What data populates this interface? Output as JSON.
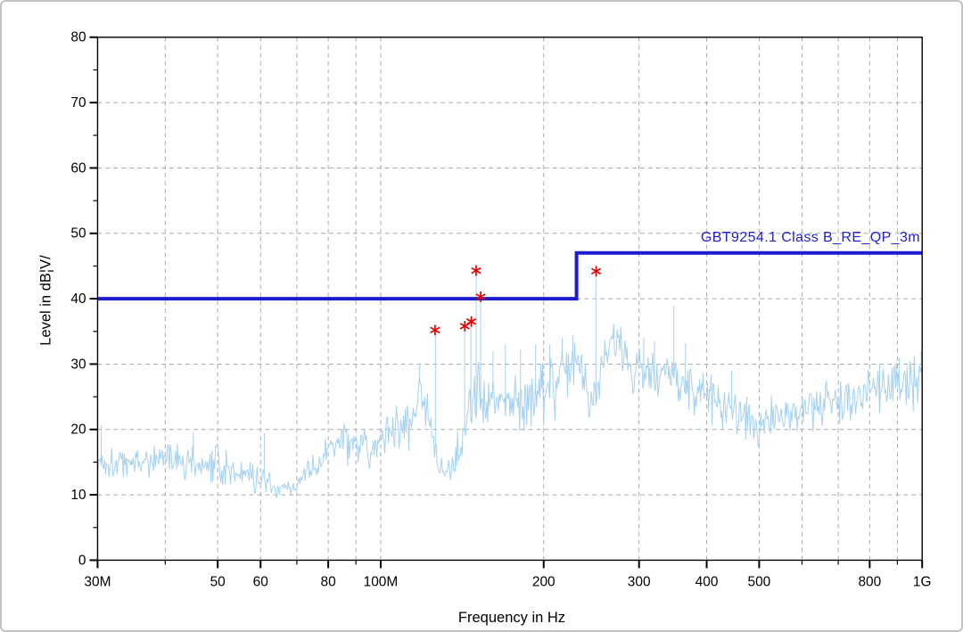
{
  "chart_data": {
    "type": "line",
    "title": "",
    "xlabel": "Frequency in Hz",
    "ylabel": "Level in dB¦V/",
    "x_scale": "log",
    "xlim_mhz": [
      30,
      1000
    ],
    "ylim": [
      0,
      80
    ],
    "grid": true,
    "y_major_ticks": [
      0,
      10,
      20,
      30,
      40,
      50,
      60,
      70,
      80
    ],
    "y_minor_ticks": [
      5,
      15,
      25,
      35,
      45,
      55,
      65,
      75
    ],
    "x_major_ticks": [
      {
        "mhz": 30,
        "label": "30M"
      },
      {
        "mhz": 50,
        "label": "50"
      },
      {
        "mhz": 60,
        "label": "60"
      },
      {
        "mhz": 80,
        "label": "80"
      },
      {
        "mhz": 100,
        "label": "100M"
      },
      {
        "mhz": 200,
        "label": "200"
      },
      {
        "mhz": 300,
        "label": "300"
      },
      {
        "mhz": 400,
        "label": "400"
      },
      {
        "mhz": 500,
        "label": "500"
      },
      {
        "mhz": 800,
        "label": "800"
      },
      {
        "mhz": 1000,
        "label": "1G"
      }
    ],
    "x_minor_ticks_mhz": [
      40,
      70,
      90,
      600,
      700,
      900
    ],
    "x_grid_mhz": [
      40,
      50,
      60,
      70,
      80,
      90,
      100,
      200,
      300,
      400,
      500,
      600,
      700,
      800,
      900
    ],
    "limit_line": {
      "label": "GBT9254.1 Class B_RE_QP_3m",
      "color": "#1c1ccd",
      "points_mhz_db": [
        [
          30,
          40
        ],
        [
          230,
          40
        ],
        [
          230,
          47
        ],
        [
          1000,
          47
        ]
      ]
    },
    "series": [
      {
        "name": "measured-spectrum",
        "color": "#a6d2f2",
        "envelope_mhz_base_spread": [
          [
            30,
            15,
            2.5
          ],
          [
            34,
            15,
            2
          ],
          [
            38,
            15.3,
            2.2
          ],
          [
            42,
            15.4,
            2.4
          ],
          [
            46,
            15,
            2.3
          ],
          [
            50,
            15,
            2.2
          ],
          [
            54,
            13.6,
            1.7
          ],
          [
            58,
            13.2,
            1.7
          ],
          [
            62,
            11.8,
            1.4
          ],
          [
            66,
            10.8,
            1
          ],
          [
            70,
            11.5,
            1.3
          ],
          [
            74,
            13.5,
            1.7
          ],
          [
            78,
            15.5,
            2.1
          ],
          [
            82,
            17.8,
            2.5
          ],
          [
            87,
            18.8,
            2.6
          ],
          [
            92,
            18.2,
            2.6
          ],
          [
            97,
            18.2,
            2.5
          ],
          [
            102,
            19,
            2.7
          ],
          [
            108,
            20.5,
            3
          ],
          [
            114,
            22.5,
            3.3
          ],
          [
            119,
            25,
            3.6
          ],
          [
            122,
            23.5,
            3.2
          ],
          [
            125,
            17,
            2.4
          ],
          [
            128,
            14,
            1.8
          ],
          [
            132,
            13.3,
            1.7
          ],
          [
            136,
            14.8,
            2
          ],
          [
            140,
            17.8,
            2.7
          ],
          [
            145,
            22,
            3.4
          ],
          [
            150,
            26.5,
            4.3
          ],
          [
            155,
            27,
            4.4
          ],
          [
            160,
            25.8,
            4.1
          ],
          [
            166,
            25,
            4
          ],
          [
            172,
            25.6,
            4
          ],
          [
            178,
            25.1,
            4
          ],
          [
            185,
            25.6,
            4
          ],
          [
            192,
            26,
            4
          ],
          [
            199,
            26.6,
            4
          ],
          [
            207,
            27.1,
            4
          ],
          [
            215,
            28,
            4
          ],
          [
            223,
            29.2,
            3.8
          ],
          [
            230,
            30.5,
            3.4
          ],
          [
            237,
            27.2,
            3.2
          ],
          [
            244,
            24.6,
            3
          ],
          [
            251,
            26.5,
            3
          ],
          [
            258,
            31,
            3
          ],
          [
            265,
            33.8,
            2.6
          ],
          [
            272,
            34.2,
            2.6
          ],
          [
            280,
            32.8,
            2.7
          ],
          [
            288,
            30.4,
            2.9
          ],
          [
            296,
            29.3,
            3
          ],
          [
            305,
            29.8,
            3.2
          ],
          [
            315,
            29.4,
            3.2
          ],
          [
            326,
            28.8,
            3.1
          ],
          [
            338,
            28.3,
            3
          ],
          [
            350,
            28,
            3
          ],
          [
            363,
            27.4,
            3
          ],
          [
            377,
            26.6,
            2.9
          ],
          [
            392,
            25.8,
            2.8
          ],
          [
            408,
            25,
            2.7
          ],
          [
            425,
            24.2,
            2.6
          ],
          [
            443,
            23.5,
            2.6
          ],
          [
            462,
            22.7,
            2.6
          ],
          [
            482,
            21.6,
            2.5
          ],
          [
            500,
            20.5,
            2.4
          ],
          [
            520,
            21.8,
            2.5
          ],
          [
            542,
            22.8,
            2.5
          ],
          [
            565,
            23.1,
            2.5
          ],
          [
            590,
            23.4,
            2.5
          ],
          [
            615,
            23.7,
            2.5
          ],
          [
            642,
            24,
            2.5
          ],
          [
            670,
            24.3,
            2.5
          ],
          [
            700,
            24.6,
            2.6
          ],
          [
            731,
            25,
            2.6
          ],
          [
            763,
            25.5,
            2.7
          ],
          [
            797,
            26,
            2.7
          ],
          [
            832,
            26.4,
            2.8
          ],
          [
            869,
            26.8,
            3
          ],
          [
            907,
            27.1,
            3
          ],
          [
            947,
            27.3,
            3
          ],
          [
            988,
            27.8,
            3
          ],
          [
            1000,
            29.5,
            3
          ]
        ],
        "spikes_mhz_peak": [
          [
            30.4,
            20.6
          ],
          [
            45,
            19.6
          ],
          [
            61,
            19.4
          ],
          [
            118,
            29.8
          ],
          [
            126,
            35.2
          ],
          [
            143,
            35.8
          ],
          [
            147,
            36.5
          ],
          [
            150,
            44.3
          ],
          [
            153,
            40.3
          ],
          [
            161,
            32
          ],
          [
            170,
            33
          ],
          [
            181,
            32.2
          ],
          [
            193,
            33
          ],
          [
            205,
            33
          ],
          [
            216,
            34
          ],
          [
            226,
            34.5
          ],
          [
            250,
            44.2
          ],
          [
            306,
            34
          ],
          [
            320,
            33.5
          ],
          [
            348,
            39
          ],
          [
            366,
            33.2
          ],
          [
            445,
            29
          ],
          [
            835,
            30
          ],
          [
            905,
            31
          ],
          [
            948,
            30.5
          ],
          [
            997,
            32
          ]
        ]
      }
    ],
    "markers": {
      "symbol": "asterisk",
      "color": "#e60000",
      "points_mhz_db": [
        [
          126,
          35.2
        ],
        [
          143,
          35.8
        ],
        [
          147,
          36.5
        ],
        [
          150,
          44.3
        ],
        [
          153,
          40.3
        ],
        [
          250,
          44.2
        ]
      ]
    }
  },
  "style": {
    "background": "#ffffff",
    "page_border": "#c2c2c2",
    "grid_color": "#ababab",
    "axis_color": "#000000",
    "tick_label_color": "#000000"
  }
}
